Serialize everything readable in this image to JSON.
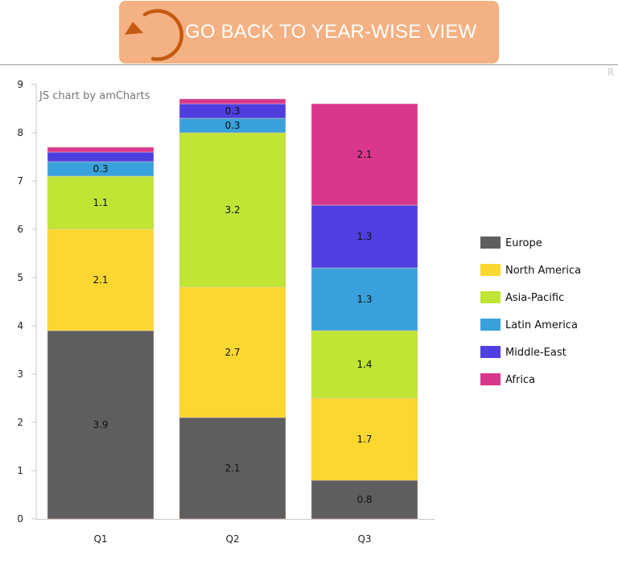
{
  "header": {
    "back_button_label": "GO BACK TO YEAR-WISE VIEW",
    "button_color": "#f4b183",
    "arrow_color": "#c55a11",
    "refresh_label": "R"
  },
  "chart_data": {
    "type": "bar",
    "stacked": true,
    "credit": "JS chart by amCharts",
    "categories": [
      "Q1",
      "Q2",
      "Q3"
    ],
    "series": [
      {
        "name": "Europe",
        "color": "#5e5e5e",
        "values": [
          3.9,
          2.1,
          0.8
        ],
        "labels": [
          "3.9",
          "2.1",
          "0.8"
        ]
      },
      {
        "name": "North America",
        "color": "#fbd72f",
        "values": [
          2.1,
          2.7,
          1.7
        ],
        "labels": [
          "2.1",
          "2.7",
          "1.7"
        ]
      },
      {
        "name": "Asia-Pacific",
        "color": "#bfe535",
        "values": [
          1.1,
          3.2,
          1.4
        ],
        "labels": [
          "1.1",
          "3.2",
          "1.4"
        ]
      },
      {
        "name": "Latin America",
        "color": "#38a1db",
        "values": [
          0.3,
          0.3,
          1.3
        ],
        "labels": [
          "0.3",
          "0.3",
          "1.3"
        ]
      },
      {
        "name": "Middle-East",
        "color": "#4f3ee0",
        "values": [
          0.2,
          0.3,
          1.3
        ],
        "labels": [
          "",
          "0.3",
          "1.3"
        ]
      },
      {
        "name": "Africa",
        "color": "#d9378b",
        "values": [
          0.1,
          0.1,
          2.1
        ],
        "labels": [
          "",
          "",
          "2.1"
        ]
      }
    ],
    "ylim": [
      0,
      9
    ],
    "yticks": [
      "0",
      "1",
      "2",
      "3",
      "4",
      "5",
      "6",
      "7",
      "8",
      "9"
    ],
    "legend_position": "right",
    "xlabel": "",
    "ylabel": "",
    "grid": false
  }
}
